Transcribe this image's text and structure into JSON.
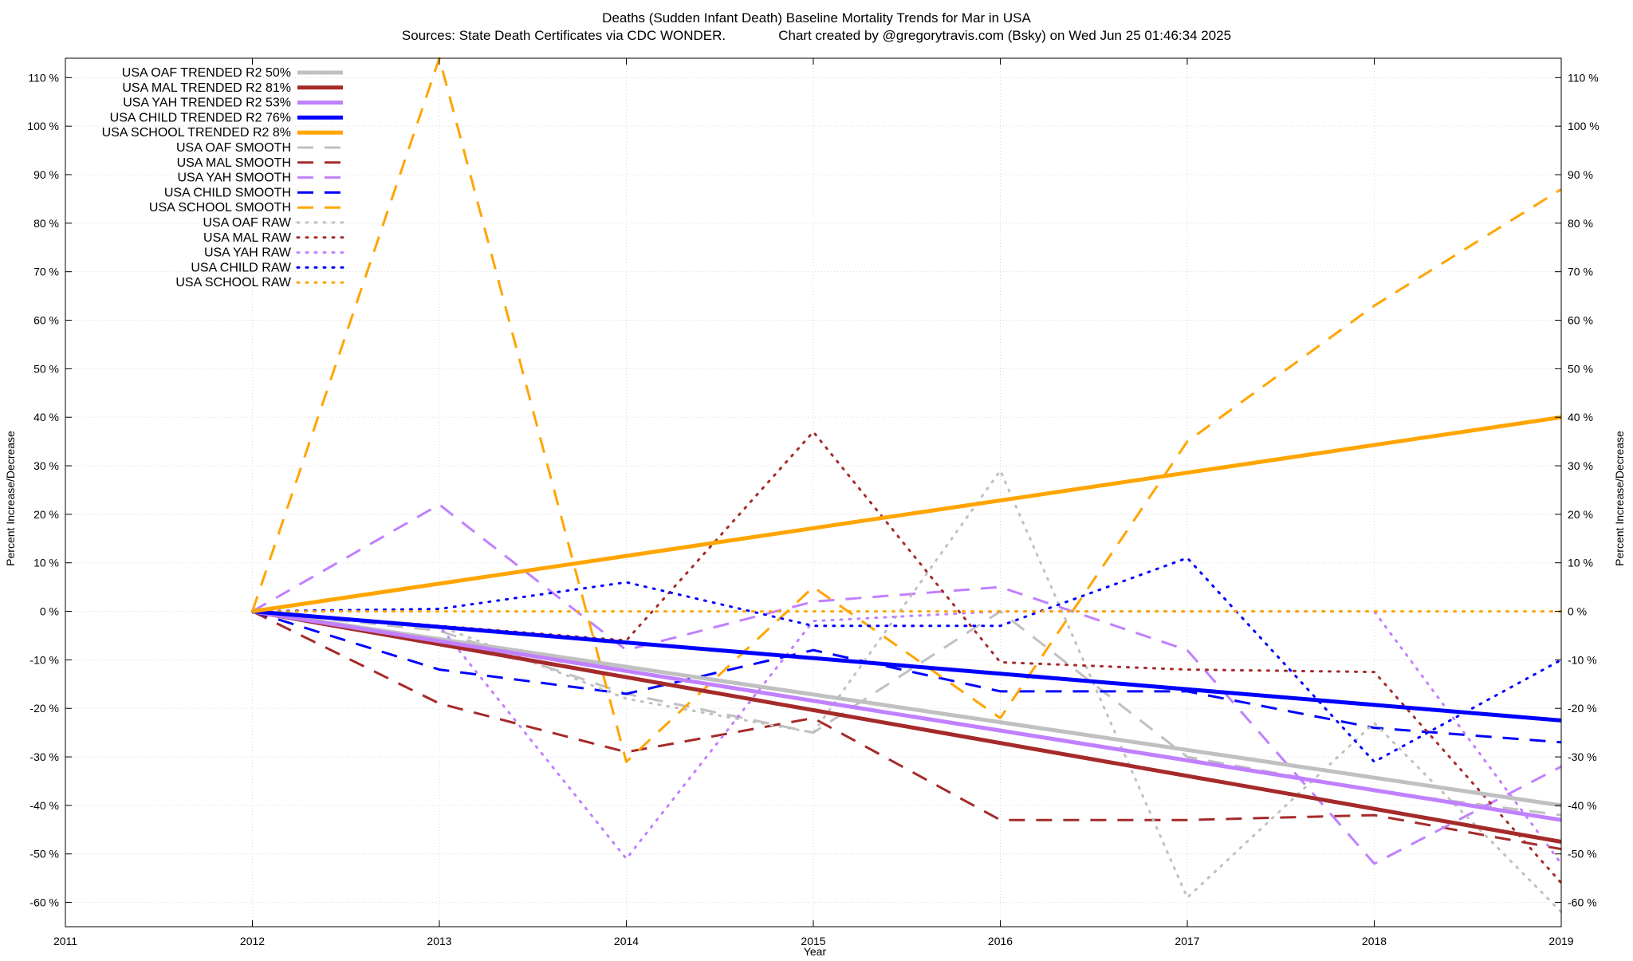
{
  "chart_data": {
    "type": "line",
    "title": "Deaths (Sudden Infant Death)  Baseline Mortality Trends for Mar in USA",
    "subtitle": "Sources: State Death Certificates via CDC WONDER.              Chart created by @gregorytravis.com (Bsky) on Wed Jun 25 01:46:34 2025",
    "xlabel": "Year",
    "ylabel": "Percent Increase/Decrease",
    "ylabel_right": "Percent Increase/Decrease",
    "xlim": [
      2011,
      2019
    ],
    "ylim": [
      -65,
      114
    ],
    "x_ticks": [
      2011,
      2012,
      2013,
      2014,
      2015,
      2016,
      2017,
      2018,
      2019
    ],
    "y_ticks": [
      -60,
      -50,
      -40,
      -30,
      -20,
      -10,
      0,
      10,
      20,
      30,
      40,
      50,
      60,
      70,
      80,
      90,
      100,
      110
    ],
    "y_tick_suffix": " %",
    "grid": true,
    "legend_position": "top-left",
    "series": [
      {
        "name": "USA OAF TRENDED R2  50%",
        "color": "#c0c0c0",
        "style": "solid",
        "x": [
          2012,
          2019
        ],
        "y": [
          0,
          -40
        ]
      },
      {
        "name": "USA MAL TRENDED R2  81%",
        "color": "#a52a2a",
        "style": "solid",
        "x": [
          2012,
          2019
        ],
        "y": [
          0,
          -47.5
        ]
      },
      {
        "name": "USA YAH TRENDED R2  53%",
        "color": "#c080ff",
        "style": "solid",
        "x": [
          2012,
          2019
        ],
        "y": [
          0,
          -43
        ]
      },
      {
        "name": "USA CHILD TRENDED R2  76%",
        "color": "#0000ff",
        "style": "solid",
        "x": [
          2012,
          2019
        ],
        "y": [
          0,
          -22.5
        ]
      },
      {
        "name": "USA SCHOOL TRENDED R2   8%",
        "color": "#ffa500",
        "style": "solid",
        "x": [
          2012,
          2019
        ],
        "y": [
          0,
          40
        ]
      },
      {
        "name": "USA OAF SMOOTH",
        "color": "#c0c0c0",
        "style": "dashed",
        "x": [
          2012,
          2013,
          2014,
          2015,
          2016,
          2017,
          2018,
          2019
        ],
        "y": [
          0,
          -4,
          -17,
          -25,
          0,
          -30,
          -37,
          -42
        ]
      },
      {
        "name": "USA MAL SMOOTH",
        "color": "#a52a2a",
        "style": "dashed",
        "x": [
          2012,
          2013,
          2014,
          2015,
          2016,
          2017,
          2018,
          2019
        ],
        "y": [
          0,
          -19,
          -29,
          -22,
          -43,
          -43,
          -42,
          -49
        ]
      },
      {
        "name": "USA YAH SMOOTH",
        "color": "#c080ff",
        "style": "dashed",
        "x": [
          2012,
          2013,
          2014,
          2015,
          2016,
          2017,
          2018,
          2019
        ],
        "y": [
          0,
          22,
          -8,
          2,
          5,
          -8,
          -52,
          -32
        ]
      },
      {
        "name": "USA CHILD SMOOTH",
        "color": "#0000ff",
        "style": "dashed",
        "x": [
          2012,
          2013,
          2014,
          2015,
          2016,
          2017,
          2018,
          2019
        ],
        "y": [
          0,
          -12,
          -17,
          -8,
          -16.5,
          -16.5,
          -24,
          -27
        ]
      },
      {
        "name": "USA SCHOOL SMOOTH",
        "color": "#ffa500",
        "style": "dashed",
        "x": [
          2012,
          2013,
          2014,
          2015,
          2016,
          2017,
          2018,
          2019
        ],
        "y": [
          0,
          114,
          -31,
          5,
          -22,
          35,
          63,
          87
        ]
      },
      {
        "name": "USA OAF RAW",
        "color": "#c0c0c0",
        "style": "dotted",
        "x": [
          2012,
          2013,
          2014,
          2015,
          2016,
          2017,
          2018,
          2019
        ],
        "y": [
          0,
          -3,
          -18,
          -25,
          29,
          -59,
          -23,
          -62
        ]
      },
      {
        "name": "USA MAL RAW",
        "color": "#a52a2a",
        "style": "dotted",
        "x": [
          2012,
          2013,
          2014,
          2015,
          2016,
          2017,
          2018,
          2019
        ],
        "y": [
          0,
          -3,
          -6,
          37,
          -10.5,
          -12,
          -12.5,
          -56
        ]
      },
      {
        "name": "USA YAH RAW",
        "color": "#c080ff",
        "style": "dotted",
        "x": [
          2012,
          2013,
          2014,
          2015,
          2016,
          2017,
          2018,
          2019
        ],
        "y": [
          0,
          -3,
          -51,
          -2,
          0,
          0,
          0,
          -52
        ]
      },
      {
        "name": "USA CHILD RAW",
        "color": "#0000ff",
        "style": "dotted",
        "x": [
          2012,
          2013,
          2014,
          2015,
          2016,
          2017,
          2018,
          2019
        ],
        "y": [
          0,
          0.5,
          6,
          -3,
          -3,
          11,
          -31,
          -10
        ]
      },
      {
        "name": "USA SCHOOL RAW",
        "color": "#ffa500",
        "style": "dotted",
        "x": [
          2012,
          2013,
          2014,
          2015,
          2016,
          2017,
          2018,
          2019
        ],
        "y": [
          0,
          0,
          0,
          0,
          0,
          0,
          0,
          0
        ]
      }
    ]
  }
}
